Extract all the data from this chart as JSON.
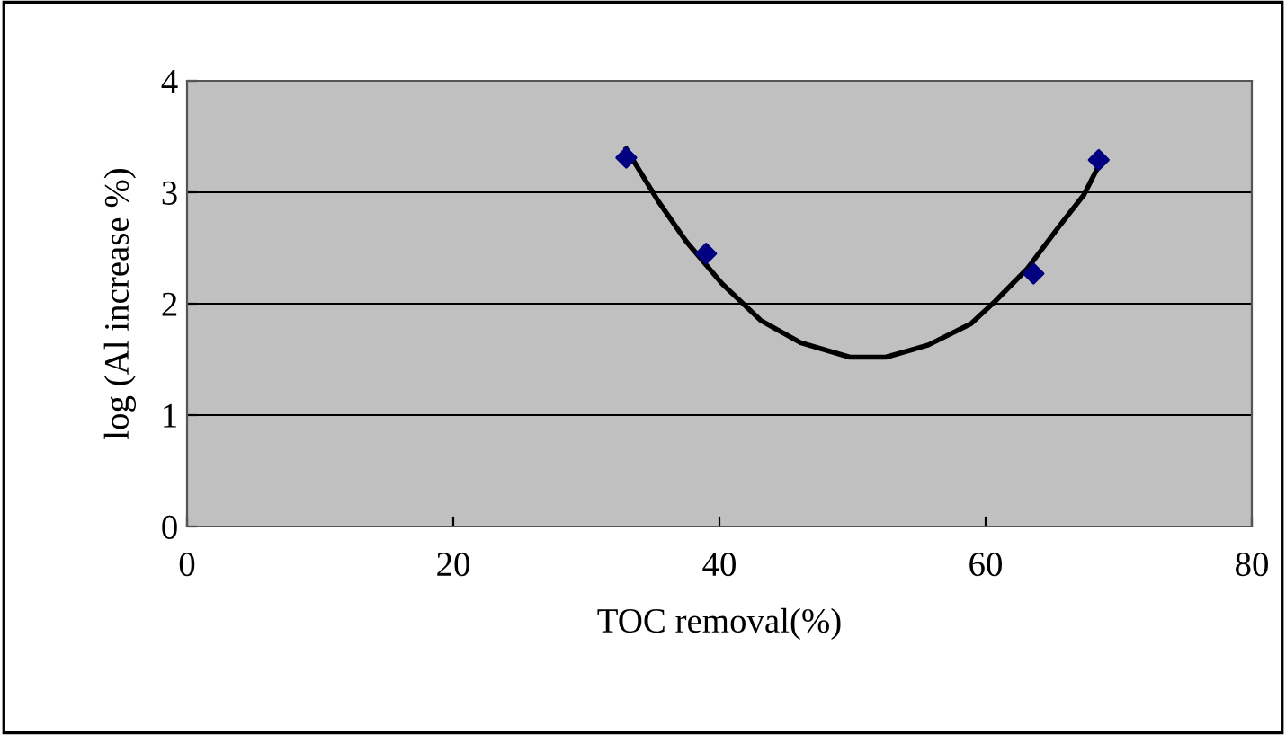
{
  "chart_data": {
    "type": "scatter",
    "xlabel": "TOC removal(%)",
    "ylabel": "log (Al increase %)",
    "xlim": [
      0,
      80
    ],
    "xticks": [
      0,
      20,
      40,
      60,
      80
    ],
    "ylim": [
      0,
      4
    ],
    "yticks": [
      0,
      1,
      2,
      3,
      4
    ],
    "grid": "y",
    "series": [
      {
        "color": "#000080",
        "marker": "diamond",
        "x": [
          33.0,
          39.0,
          63.6,
          68.5
        ],
        "values": [
          3.31,
          2.45,
          2.27,
          3.29
        ]
      },
      {
        "type": "line",
        "color": "#000000",
        "marker": "none",
        "line_style": "solid",
        "x": [
          33.0,
          35.4,
          37.5,
          40.2,
          43.1,
          46.1,
          49.8,
          52.5,
          55.7,
          58.9,
          60.7,
          63.1,
          65.5,
          67.4,
          68.5
        ],
        "values": [
          3.39,
          2.92,
          2.56,
          2.18,
          1.85,
          1.65,
          1.52,
          1.52,
          1.63,
          1.82,
          2.02,
          2.31,
          2.69,
          2.98,
          3.24
        ]
      }
    ]
  }
}
